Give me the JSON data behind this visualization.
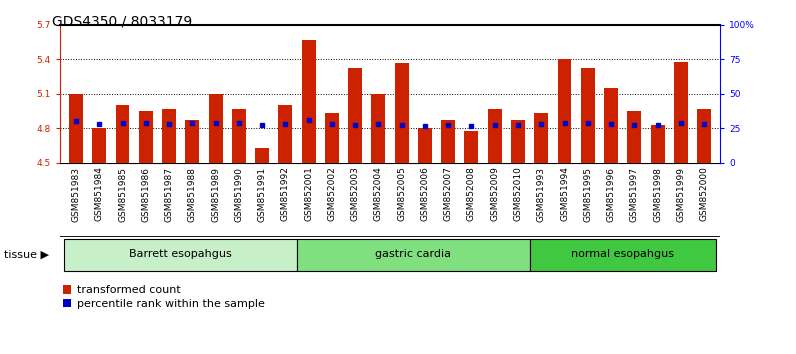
{
  "title": "GDS4350 / 8033179",
  "samples": [
    "GSM851983",
    "GSM851984",
    "GSM851985",
    "GSM851986",
    "GSM851987",
    "GSM851988",
    "GSM851989",
    "GSM851990",
    "GSM851991",
    "GSM851992",
    "GSM852001",
    "GSM852002",
    "GSM852003",
    "GSM852004",
    "GSM852005",
    "GSM852006",
    "GSM852007",
    "GSM852008",
    "GSM852009",
    "GSM852010",
    "GSM851993",
    "GSM851994",
    "GSM851995",
    "GSM851996",
    "GSM851997",
    "GSM851998",
    "GSM851999",
    "GSM852000"
  ],
  "bar_heights": [
    5.1,
    4.8,
    5.0,
    4.95,
    4.97,
    4.87,
    5.1,
    4.97,
    4.63,
    5.0,
    5.57,
    4.93,
    5.32,
    5.1,
    5.37,
    4.8,
    4.87,
    4.78,
    4.97,
    4.87,
    4.93,
    5.4,
    5.32,
    5.15,
    4.95,
    4.83,
    5.38,
    4.97
  ],
  "blue_markers": [
    4.86,
    4.84,
    4.85,
    4.85,
    4.84,
    4.85,
    4.85,
    4.85,
    4.83,
    4.84,
    4.87,
    4.84,
    4.83,
    4.84,
    4.83,
    4.82,
    4.83,
    4.82,
    4.83,
    4.83,
    4.84,
    4.85,
    4.85,
    4.84,
    4.83,
    4.83,
    4.85,
    4.84
  ],
  "groups": [
    {
      "label": "Barrett esopahgus",
      "start": 0,
      "end": 10,
      "color": "#c8f0c8"
    },
    {
      "label": "gastric cardia",
      "start": 10,
      "end": 20,
      "color": "#80e080"
    },
    {
      "label": "normal esopahgus",
      "start": 20,
      "end": 28,
      "color": "#40c840"
    }
  ],
  "bar_color": "#cc2200",
  "blue_color": "#0000cc",
  "ylim_left": [
    4.5,
    5.7
  ],
  "ylim_right": [
    0,
    100
  ],
  "yticks_left": [
    4.5,
    4.8,
    5.1,
    5.4,
    5.7
  ],
  "yticks_right": [
    0,
    25,
    50,
    75,
    100
  ],
  "ytick_labels_right": [
    "0",
    "25",
    "50",
    "75",
    "100%"
  ],
  "plot_bg": "#ffffff",
  "xticklabel_bg": "#d8d8d8",
  "title_fontsize": 10,
  "tick_fontsize": 6.5,
  "label_fontsize": 8,
  "legend_items": [
    "transformed count",
    "percentile rank within the sample"
  ]
}
